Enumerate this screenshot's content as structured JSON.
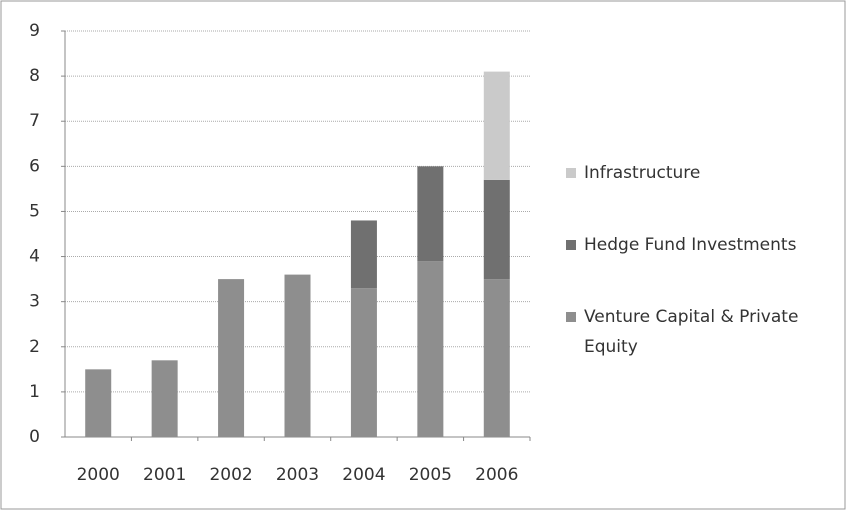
{
  "chart_data": {
    "type": "stacked_bar",
    "categories": [
      "2000",
      "2001",
      "2002",
      "2003",
      "2004",
      "2005",
      "2006"
    ],
    "series": [
      {
        "name": "Venture Capital & Private Equity",
        "color": "#8e8e8e",
        "values": [
          1.5,
          1.7,
          3.5,
          3.6,
          3.3,
          3.9,
          3.5
        ]
      },
      {
        "name": "Hedge Fund Investments",
        "color": "#707070",
        "values": [
          0,
          0,
          0,
          0,
          1.5,
          2.1,
          2.2
        ]
      },
      {
        "name": "Infrastructure",
        "color": "#cacaca",
        "values": [
          0,
          0,
          0,
          0,
          0,
          0,
          2.4
        ]
      }
    ],
    "ylim": [
      0,
      9
    ],
    "yticks": [
      0,
      1,
      2,
      3,
      4,
      5,
      6,
      7,
      8,
      9
    ],
    "grid": true,
    "legend": "right"
  }
}
